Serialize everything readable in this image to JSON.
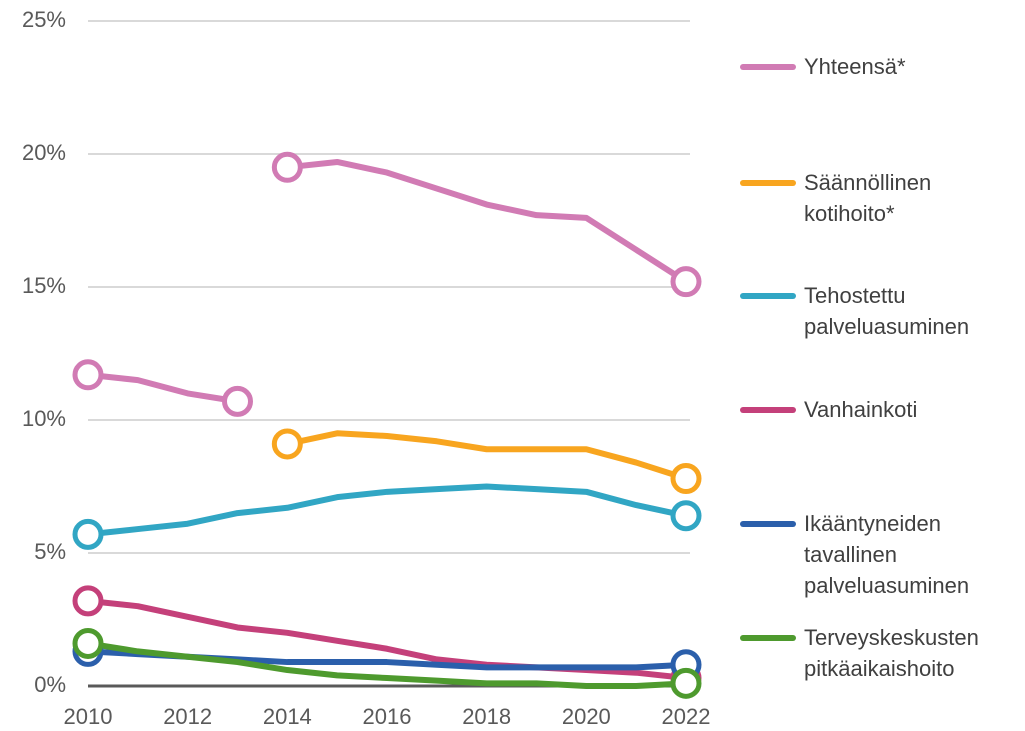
{
  "chart_data": {
    "type": "line",
    "xlim": [
      2010,
      2022
    ],
    "xticks": [
      2010,
      2012,
      2014,
      2016,
      2018,
      2020,
      2022
    ],
    "ylim": [
      0,
      25
    ],
    "yticks": [
      {
        "value": 0,
        "label": "0%"
      },
      {
        "value": 5,
        "label": "5%"
      },
      {
        "value": 10,
        "label": "10%"
      },
      {
        "value": 15,
        "label": "15%"
      },
      {
        "value": 20,
        "label": "20%"
      },
      {
        "value": 25,
        "label": "25%"
      }
    ],
    "grid": true,
    "legend": "right",
    "series": [
      {
        "name": "Yhteensä*",
        "color": "#d17bb4",
        "segments": [
          {
            "x": [
              2010,
              2011,
              2012,
              2013
            ],
            "values": [
              11.7,
              11.5,
              11.0,
              10.7
            ]
          },
          {
            "x": [
              2014,
              2015,
              2016,
              2017,
              2018,
              2019,
              2020,
              2021,
              2022
            ],
            "values": [
              19.5,
              19.7,
              19.3,
              18.7,
              18.1,
              17.7,
              17.6,
              16.4,
              15.2
            ]
          }
        ]
      },
      {
        "name": "Säännöllinen kotihoito*",
        "color": "#f8a51f",
        "segments": [
          {
            "x": [
              2014,
              2015,
              2016,
              2017,
              2018,
              2019,
              2020,
              2021,
              2022
            ],
            "values": [
              9.1,
              9.5,
              9.4,
              9.2,
              8.9,
              8.9,
              8.9,
              8.4,
              7.8
            ]
          }
        ]
      },
      {
        "name": "Tehostettu palveluasuminen",
        "color": "#31a6c4",
        "segments": [
          {
            "x": [
              2010,
              2011,
              2012,
              2013,
              2014,
              2015,
              2016,
              2017,
              2018,
              2019,
              2020,
              2021,
              2022
            ],
            "values": [
              5.7,
              5.9,
              6.1,
              6.5,
              6.7,
              7.1,
              7.3,
              7.4,
              7.5,
              7.4,
              7.3,
              6.8,
              6.4
            ]
          }
        ]
      },
      {
        "name": "Vanhainkoti",
        "color": "#c4407a",
        "segments": [
          {
            "x": [
              2010,
              2011,
              2012,
              2013,
              2014,
              2015,
              2016,
              2017,
              2018,
              2019,
              2020,
              2021,
              2022
            ],
            "values": [
              3.2,
              3.0,
              2.6,
              2.2,
              2.0,
              1.7,
              1.4,
              1.0,
              0.8,
              0.7,
              0.6,
              0.5,
              0.3
            ]
          }
        ]
      },
      {
        "name": "Ikääntyneiden tavallinen palveluasuminen",
        "color": "#2b5fab",
        "segments": [
          {
            "x": [
              2010,
              2011,
              2012,
              2013,
              2014,
              2015,
              2016,
              2017,
              2018,
              2019,
              2020,
              2021,
              2022
            ],
            "values": [
              1.3,
              1.2,
              1.1,
              1.0,
              0.9,
              0.9,
              0.9,
              0.8,
              0.7,
              0.7,
              0.7,
              0.7,
              0.8
            ]
          }
        ]
      },
      {
        "name": "Terveyskeskusten pitkäaikaishoito",
        "color": "#4e9a2e",
        "segments": [
          {
            "x": [
              2010,
              2011,
              2012,
              2013,
              2014,
              2015,
              2016,
              2017,
              2018,
              2019,
              2020,
              2021,
              2022
            ],
            "values": [
              1.6,
              1.3,
              1.1,
              0.9,
              0.6,
              0.4,
              0.3,
              0.2,
              0.1,
              0.1,
              0.0,
              0.0,
              0.1
            ]
          }
        ]
      }
    ]
  }
}
